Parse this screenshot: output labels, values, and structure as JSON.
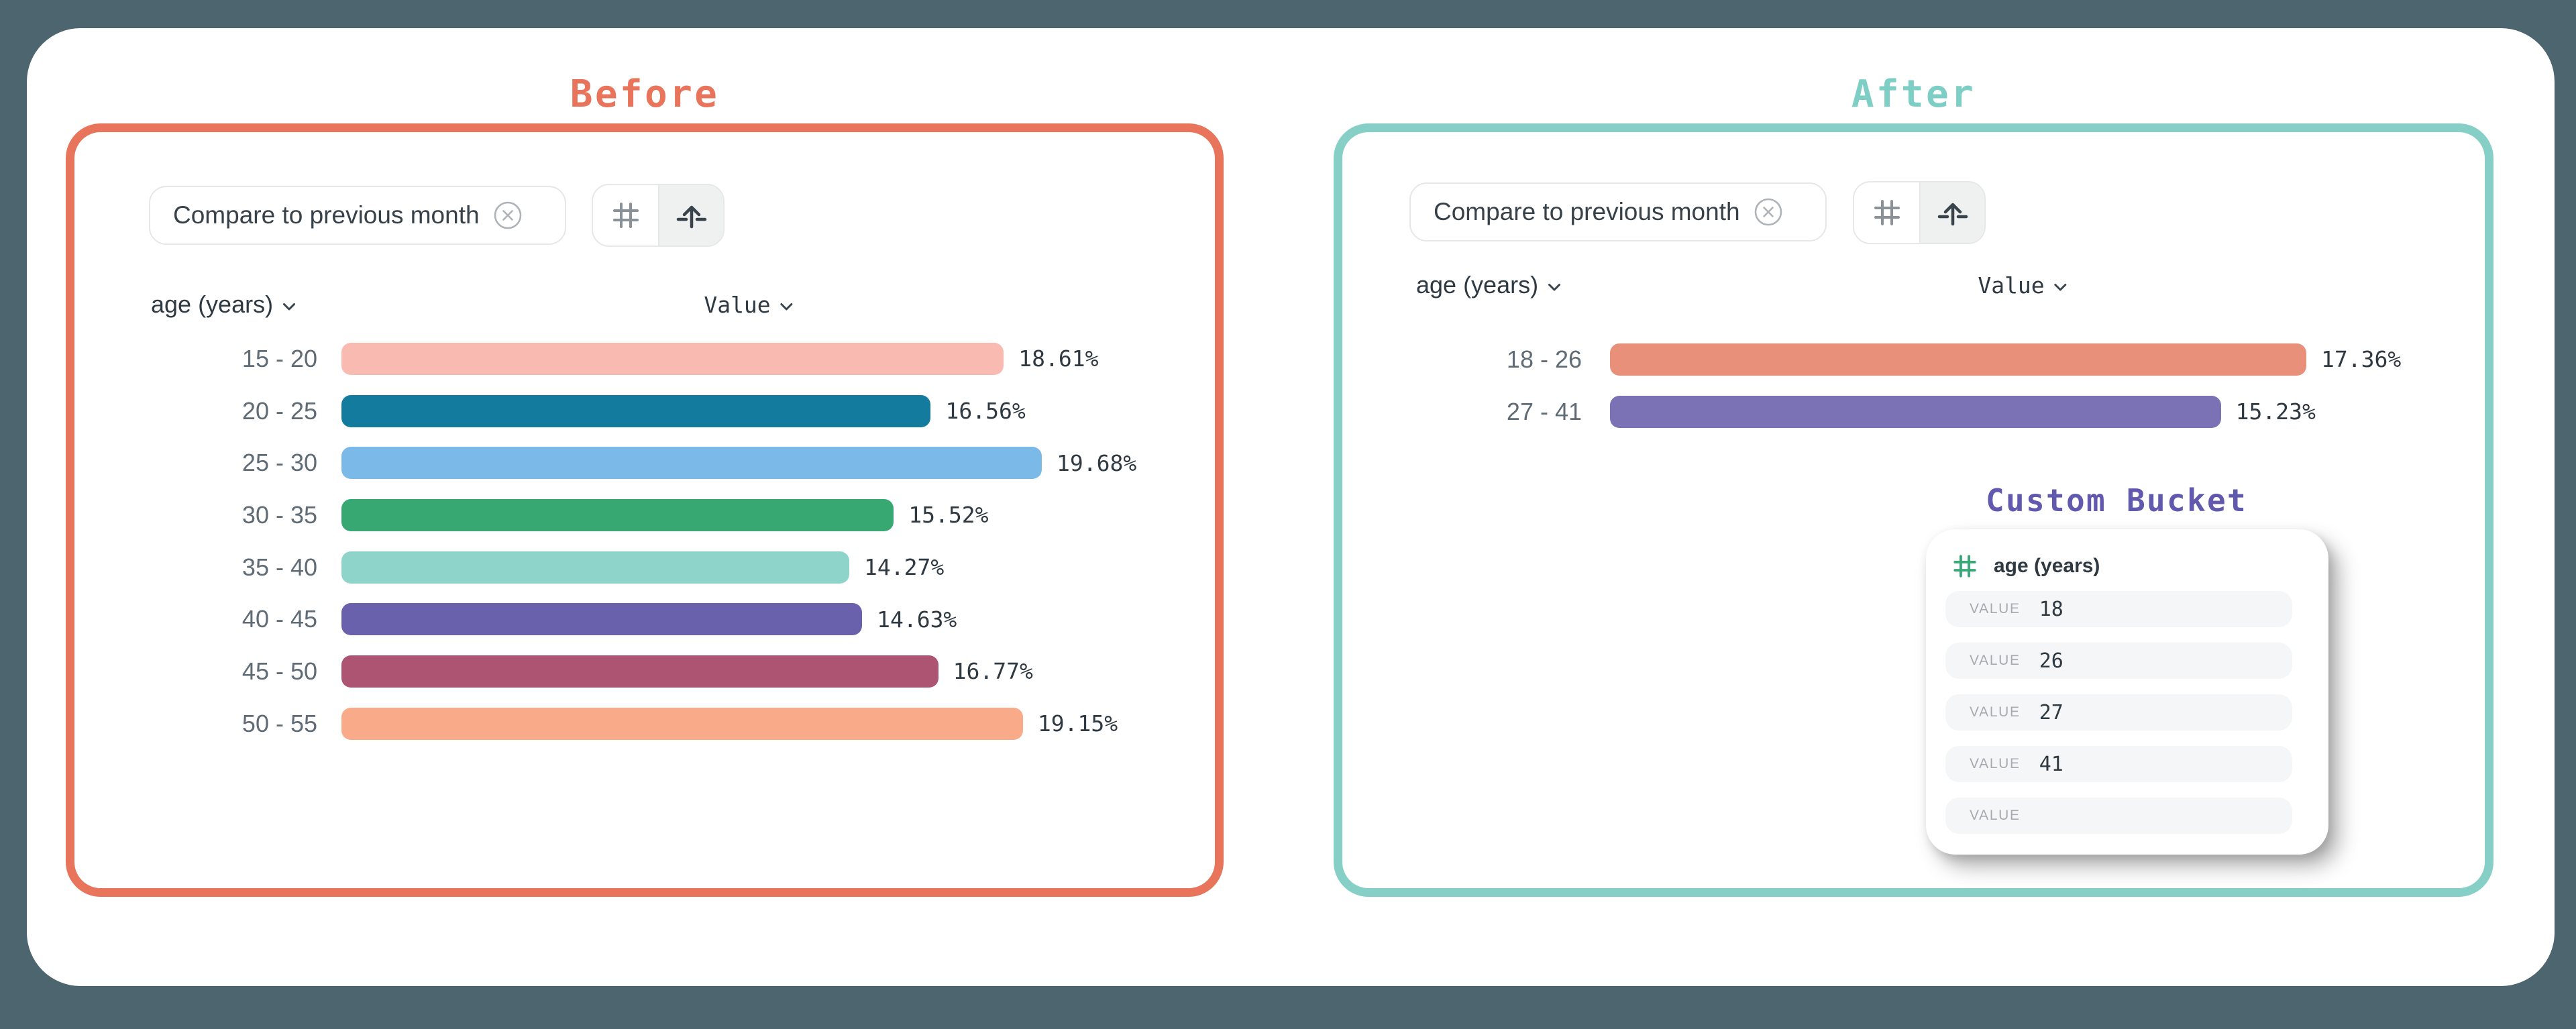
{
  "page": {
    "background_color": "#4D656E",
    "card_color": "#FFFFFF"
  },
  "before": {
    "title": "Before",
    "accent_color": "#E8755B",
    "chip": {
      "label": "Compare to previous month",
      "close_icon": "close-circle-icon"
    },
    "toolbar": {
      "buttons": [
        {
          "icon": "hash-icon",
          "active": false
        },
        {
          "icon": "arrow-up-bucket-icon",
          "active": true
        }
      ]
    },
    "columns": {
      "dimension": "age (years)",
      "measure": "Value"
    }
  },
  "after": {
    "title": "After",
    "accent_color": "#85CFC6",
    "chip": {
      "label": "Compare to previous month",
      "close_icon": "close-circle-icon"
    },
    "toolbar": {
      "buttons": [
        {
          "icon": "hash-icon",
          "active": false
        },
        {
          "icon": "arrow-up-bucket-icon",
          "active": true
        }
      ]
    },
    "columns": {
      "dimension": "age (years)",
      "measure": "Value"
    }
  },
  "custom_bucket": {
    "title": "Custom Bucket",
    "title_color": "#6059AE",
    "field": {
      "icon": "hash-icon",
      "icon_color": "#3AA878",
      "label": "age (years)"
    },
    "rows": [
      {
        "label": "VALUE",
        "value": "18"
      },
      {
        "label": "VALUE",
        "value": "26"
      },
      {
        "label": "VALUE",
        "value": "27"
      },
      {
        "label": "VALUE",
        "value": "41"
      },
      {
        "label": "VALUE",
        "value": ""
      }
    ]
  },
  "chart_data": [
    {
      "type": "bar",
      "orientation": "horizontal",
      "panel": "before",
      "title": "Before",
      "xlabel": "Value",
      "ylabel": "age (years)",
      "categories": [
        "15 - 20",
        "20 - 25",
        "25 - 30",
        "30 - 35",
        "35 - 40",
        "40 - 45",
        "45 - 50",
        "50 - 55"
      ],
      "values": [
        18.61,
        16.56,
        19.68,
        15.52,
        14.27,
        14.63,
        16.77,
        19.15
      ],
      "labels": [
        "18.61%",
        "16.56%",
        "19.68%",
        "15.52%",
        "14.27%",
        "14.63%",
        "16.77%",
        "19.15%"
      ],
      "colors": [
        "#F8BAB1",
        "#137C9E",
        "#7AB9E8",
        "#38A873",
        "#8FD4CA",
        "#6A61AD",
        "#AD5472",
        "#F9AA88"
      ],
      "value_suffix": "%",
      "grid": false,
      "legend": false
    },
    {
      "type": "bar",
      "orientation": "horizontal",
      "panel": "after",
      "title": "After",
      "xlabel": "Value",
      "ylabel": "age (years)",
      "categories": [
        "18 - 26",
        "27 - 41"
      ],
      "values": [
        17.36,
        15.23
      ],
      "labels": [
        "17.36%",
        "15.23%"
      ],
      "colors": [
        "#E9907A",
        "#7B72B5"
      ],
      "value_suffix": "%",
      "grid": false,
      "legend": false
    }
  ]
}
